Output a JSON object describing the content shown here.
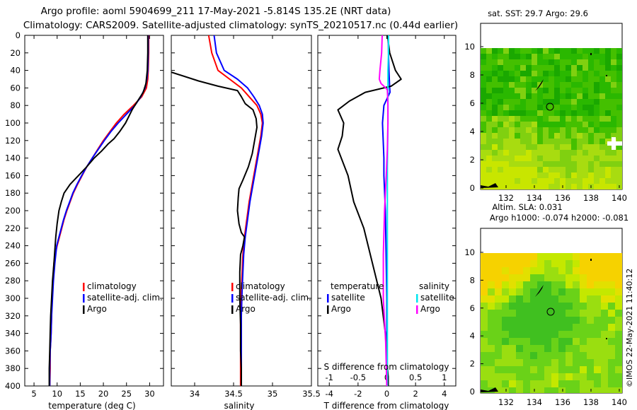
{
  "header": {
    "title_line1": "Argo profile: aoml 5904699_211 17-May-2021 -5.814S 135.2E (NRT data)",
    "title_line2": "Climatology: CARS2009. Satellite-adjusted climatology: synTS_20210517.nc (0.44d earlier)"
  },
  "colors": {
    "climatology": "#ff0000",
    "satellite": "#0000ff",
    "argo": "#000000",
    "salinity_satellite": "#00e5ee",
    "salinity_argo": "#ff00ff"
  },
  "chart_data": [
    {
      "type": "line",
      "id": "temperature",
      "xlabel": "temperature (deg C)",
      "ylabel": "",
      "xlim": [
        3,
        33
      ],
      "ylim": [
        400,
        0
      ],
      "xticks": [
        "5",
        "10",
        "15",
        "20",
        "25",
        "30"
      ],
      "xtick_values": [
        5,
        10,
        15,
        20,
        25,
        30
      ],
      "yticks": [
        "0",
        "20",
        "40",
        "60",
        "80",
        "100",
        "120",
        "140",
        "160",
        "180",
        "200",
        "220",
        "240",
        "260",
        "280",
        "300",
        "320",
        "340",
        "360",
        "380",
        "400"
      ],
      "ytick_values": [
        0,
        20,
        40,
        60,
        80,
        100,
        120,
        140,
        160,
        180,
        200,
        220,
        240,
        260,
        280,
        300,
        320,
        340,
        360,
        380,
        400
      ],
      "legend": [
        "climatology",
        "satellite-adj. clim.",
        "Argo"
      ],
      "series": [
        {
          "name": "climatology",
          "color": "#ff0000",
          "x": [
            29.8,
            29.8,
            29.7,
            29.6,
            29.3,
            28.3,
            26.5,
            24.5,
            22.8,
            21.4,
            20.0,
            18.8,
            17.6,
            16.4,
            15.4,
            14.4,
            13.5,
            12.8,
            12.1,
            11.5,
            11.0,
            10.5,
            10.0,
            9.6,
            9.3,
            9.1,
            8.9,
            8.8,
            8.7,
            8.6,
            8.5,
            8.5,
            8.4
          ],
          "y": [
            0,
            20,
            40,
            50,
            60,
            70,
            80,
            90,
            100,
            110,
            120,
            130,
            140,
            150,
            160,
            170,
            180,
            190,
            200,
            210,
            220,
            230,
            240,
            250,
            260,
            280,
            300,
            320,
            340,
            350,
            360,
            380,
            400
          ]
        },
        {
          "name": "satellite",
          "color": "#0000ff",
          "x": [
            29.7,
            29.7,
            29.6,
            29.4,
            29.0,
            28.1,
            26.8,
            25.0,
            23.2,
            21.6,
            20.2,
            18.9,
            17.6,
            16.4,
            15.3,
            14.3,
            13.4,
            12.7,
            12.0,
            11.4,
            10.9,
            10.4,
            9.9,
            9.5,
            9.2,
            9.0,
            8.8,
            8.7,
            8.6,
            8.5,
            8.4,
            8.4
          ],
          "y": [
            0,
            20,
            40,
            50,
            60,
            70,
            80,
            90,
            100,
            110,
            120,
            130,
            140,
            150,
            160,
            170,
            180,
            190,
            200,
            210,
            220,
            230,
            240,
            260,
            280,
            300,
            320,
            340,
            350,
            360,
            380,
            400
          ]
        },
        {
          "name": "Argo",
          "color": "#000000",
          "x": [
            29.6,
            29.6,
            29.5,
            29.2,
            28.6,
            27.4,
            26.2,
            24.8,
            23.5,
            22.3,
            21.0,
            19.6,
            18.0,
            16.4,
            14.6,
            12.8,
            11.5,
            10.9,
            10.4,
            10.0,
            9.7,
            9.5,
            9.3,
            9.0,
            8.8,
            8.6,
            8.5,
            8.4,
            8.3,
            8.3
          ],
          "y": [
            0,
            20,
            40,
            55,
            65,
            75,
            85,
            100,
            110,
            118,
            124,
            132,
            140,
            150,
            160,
            170,
            180,
            190,
            200,
            215,
            230,
            245,
            260,
            280,
            300,
            320,
            340,
            360,
            380,
            400
          ]
        }
      ]
    },
    {
      "type": "line",
      "id": "salinity",
      "xlabel": "salinity",
      "ylabel": "",
      "xlim": [
        33.7,
        35.5
      ],
      "ylim": [
        400,
        0
      ],
      "xticks": [
        "34",
        "34.5",
        "35",
        "35.5"
      ],
      "xtick_values": [
        34,
        34.5,
        35,
        35.5
      ],
      "legend": [
        "climatology",
        "satellite-adj. clim.",
        "Argo"
      ],
      "series": [
        {
          "name": "climatology",
          "color": "#ff0000",
          "x": [
            34.18,
            34.22,
            34.3,
            34.45,
            34.6,
            34.7,
            34.8,
            34.85,
            34.87,
            34.85,
            34.82,
            34.78,
            34.74,
            34.7,
            34.67,
            34.64,
            34.62,
            34.61,
            34.6,
            34.59,
            34.59,
            34.59,
            34.59
          ],
          "y": [
            0,
            20,
            40,
            50,
            60,
            70,
            80,
            90,
            100,
            115,
            130,
            150,
            170,
            190,
            210,
            230,
            250,
            270,
            290,
            320,
            350,
            380,
            400
          ]
        },
        {
          "name": "satellite",
          "color": "#0000ff",
          "x": [
            34.25,
            34.28,
            34.38,
            34.55,
            34.68,
            34.76,
            34.83,
            34.87,
            34.88,
            34.86,
            34.83,
            34.79,
            34.75,
            34.71,
            34.68,
            34.65,
            34.63,
            34.62,
            34.61,
            34.6,
            34.6,
            34.6,
            34.6
          ],
          "y": [
            0,
            20,
            40,
            50,
            60,
            70,
            80,
            90,
            100,
            115,
            130,
            150,
            170,
            190,
            210,
            230,
            250,
            270,
            290,
            320,
            350,
            380,
            400
          ]
        },
        {
          "name": "Argo",
          "color": "#000000",
          "x": [
            33.7,
            34.05,
            34.3,
            34.55,
            34.6,
            34.65,
            34.75,
            34.79,
            34.8,
            34.77,
            34.74,
            34.69,
            34.62,
            34.57,
            34.56,
            34.55,
            34.57,
            34.6,
            34.64,
            34.62,
            34.59,
            34.58,
            34.58,
            34.59,
            34.59,
            34.6,
            34.6
          ],
          "y": [
            42,
            52,
            58,
            63,
            70,
            78,
            85,
            95,
            105,
            120,
            135,
            150,
            165,
            175,
            185,
            200,
            215,
            225,
            230,
            240,
            250,
            270,
            300,
            330,
            360,
            380,
            400
          ]
        }
      ]
    },
    {
      "type": "line",
      "id": "differences",
      "xlabel": "T difference from climatology",
      "xlabel_top": "S difference from climatology",
      "xlim": [
        -4.8,
        4.8
      ],
      "ylim": [
        400,
        0
      ],
      "xticks": [
        "-4",
        "-2",
        "0",
        "2",
        "4"
      ],
      "xtick_values": [
        -4,
        -2,
        0,
        2,
        4
      ],
      "sticks": [
        "-1",
        "-0.5",
        "0",
        "0.5",
        "1"
      ],
      "stick_values": [
        -1,
        -0.5,
        0,
        0.5,
        1
      ],
      "legend_temperature_heading": "temperature",
      "legend_salinity_heading": "salinity",
      "legend_temperature": [
        "satellite",
        "Argo"
      ],
      "legend_salinity": [
        "satellite",
        "Argo"
      ],
      "series": [
        {
          "name": "T satellite",
          "color": "#0000ff",
          "unit": "T",
          "x": [
            0.1,
            0.12,
            0.15,
            0.2,
            0.22,
            -0.2,
            -0.3,
            -0.25,
            -0.2,
            -0.2,
            -0.1,
            -0.05,
            0,
            0
          ],
          "y": [
            0,
            20,
            40,
            60,
            65,
            80,
            100,
            120,
            140,
            160,
            200,
            250,
            300,
            400
          ]
        },
        {
          "name": "T Argo",
          "color": "#000000",
          "unit": "T",
          "x": [
            0.05,
            0.2,
            0.6,
            1.0,
            0.3,
            -1.5,
            -2.6,
            -3.4,
            -3.0,
            -3.1,
            -3.4,
            -2.7,
            -2.3,
            -1.6,
            -1.0,
            -0.4,
            -0.1,
            0,
            0.1,
            0.1
          ],
          "y": [
            0,
            20,
            40,
            50,
            58,
            65,
            75,
            85,
            100,
            115,
            130,
            160,
            190,
            220,
            260,
            300,
            340,
            370,
            390,
            400
          ]
        },
        {
          "name": "S satellite",
          "color": "#00e5ee",
          "unit": "S",
          "x": [
            0.03,
            0.03,
            0.02,
            0.02,
            0.02,
            0.01,
            0.01,
            0.01,
            0.01
          ],
          "y": [
            0,
            20,
            40,
            60,
            100,
            150,
            200,
            300,
            400
          ]
        },
        {
          "name": "S Argo",
          "color": "#ff00ff",
          "unit": "S",
          "x": [
            -0.08,
            -0.09,
            -0.12,
            -0.13,
            -0.1,
            -0.05,
            0.01,
            0.02,
            0.02,
            0.01,
            -0.01,
            -0.04,
            -0.06,
            -0.06,
            -0.02,
            0
          ],
          "y": [
            0,
            20,
            40,
            50,
            55,
            58,
            62,
            80,
            100,
            130,
            160,
            200,
            250,
            300,
            350,
            400
          ]
        }
      ]
    }
  ],
  "maps": [
    {
      "id": "sst",
      "title": "sat. SST: 29.7 Argo: 29.6",
      "xticks": [
        "132",
        "134",
        "136",
        "138",
        "140"
      ],
      "yticks": [
        "0",
        "2",
        "4",
        "6",
        "8",
        "10"
      ]
    },
    {
      "id": "sla",
      "title_line1": "Altim. SLA: 0.031",
      "title_line2": "Argo h1000: -0.074 h2000: -0.081",
      "xticks": [
        "132",
        "134",
        "136",
        "138",
        "140"
      ],
      "yticks": [
        "0",
        "2",
        "4",
        "6",
        "8",
        "10"
      ]
    }
  ],
  "credit": "©IMOS 22-May-2021 11:40:12"
}
